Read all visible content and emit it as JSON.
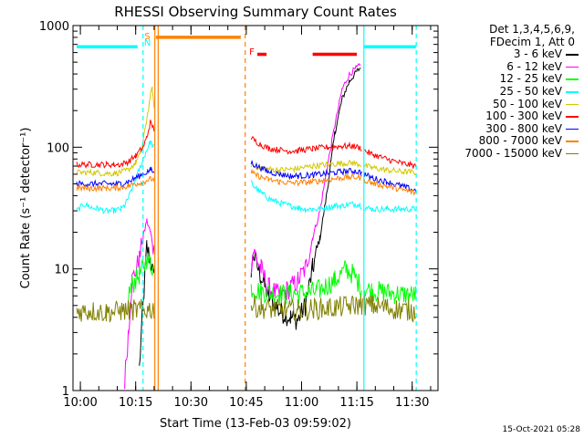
{
  "chart_data": {
    "type": "line",
    "title": "RHESSI Observing Summary Count Rates",
    "xlabel": "Start Time (13-Feb-03 09:59:02)",
    "ylabel": "Count Rate (s⁻¹ detector⁻¹)",
    "yscale": "log",
    "ylim": [
      1,
      1000
    ],
    "xlim_minutes": [
      -1,
      98
    ],
    "x_units": "minutes after 09:59:02",
    "x_ticks": [
      {
        "minute": 1,
        "label": "10:00"
      },
      {
        "minute": 16,
        "label": "10:15"
      },
      {
        "minute": 31,
        "label": "10:30"
      },
      {
        "minute": 46,
        "label": "10:45"
      },
      {
        "minute": 61,
        "label": "11:00"
      },
      {
        "minute": 76,
        "label": "11:15"
      },
      {
        "minute": 91,
        "label": "11:30"
      }
    ],
    "y_ticks": [
      {
        "value": 1,
        "label": "1"
      },
      {
        "value": 10,
        "label": "10"
      },
      {
        "value": 100,
        "label": "100"
      },
      {
        "value": 1000,
        "label": "1000"
      }
    ],
    "gaps": [
      [
        21,
        47
      ],
      [
        77.5,
        77.8
      ]
    ],
    "series": [
      {
        "name": "3 - 6 keV",
        "color": "#000000",
        "points": [
          [
            17,
            1.5
          ],
          [
            18,
            5
          ],
          [
            19,
            15
          ],
          [
            20,
            12
          ],
          [
            21,
            8
          ],
          [
            47.3,
            10
          ],
          [
            48,
            13
          ],
          [
            50,
            8.5
          ],
          [
            52,
            6
          ],
          [
            55,
            4.5
          ],
          [
            58,
            4
          ],
          [
            60,
            3.8
          ],
          [
            62,
            5
          ],
          [
            64,
            10
          ],
          [
            66,
            18
          ],
          [
            68,
            45
          ],
          [
            70,
            130
          ],
          [
            72,
            250
          ],
          [
            74,
            350
          ],
          [
            76,
            420
          ],
          [
            77,
            450
          ]
        ]
      },
      {
        "name": "6 - 12 keV",
        "color": "#ff00ff",
        "points": [
          [
            13,
            1.2
          ],
          [
            14,
            3
          ],
          [
            15,
            8
          ],
          [
            17,
            12
          ],
          [
            18,
            18
          ],
          [
            19,
            25
          ],
          [
            20,
            20
          ],
          [
            21,
            14
          ],
          [
            47.3,
            11
          ],
          [
            48,
            14
          ],
          [
            50,
            10
          ],
          [
            52,
            7
          ],
          [
            55,
            6
          ],
          [
            58,
            7
          ],
          [
            60,
            8
          ],
          [
            62,
            10
          ],
          [
            64,
            18
          ],
          [
            66,
            30
          ],
          [
            68,
            70
          ],
          [
            70,
            150
          ],
          [
            72,
            300
          ],
          [
            74,
            400
          ],
          [
            76,
            450
          ],
          [
            77,
            470
          ]
        ]
      },
      {
        "name": "12 - 25 keV",
        "color": "#00ff00",
        "points": [
          [
            14,
            6
          ],
          [
            15,
            7.5
          ],
          [
            16,
            8
          ],
          [
            17,
            9
          ],
          [
            18,
            10
          ],
          [
            19,
            12
          ],
          [
            20,
            11
          ],
          [
            21,
            10
          ],
          [
            47.3,
            7
          ],
          [
            50,
            6.5
          ],
          [
            55,
            6.2
          ],
          [
            60,
            6.3
          ],
          [
            65,
            6.5
          ],
          [
            70,
            8
          ],
          [
            73,
            10
          ],
          [
            75,
            9
          ],
          [
            77.3,
            7
          ],
          [
            78,
            7
          ],
          [
            80,
            6.6
          ],
          [
            84,
            6.4
          ],
          [
            88,
            6.2
          ],
          [
            92,
            6.1
          ]
        ]
      },
      {
        "name": "25 - 50 keV",
        "color": "#00ffff",
        "points": [
          [
            0,
            30
          ],
          [
            2,
            34
          ],
          [
            4,
            32
          ],
          [
            6,
            31
          ],
          [
            8,
            30
          ],
          [
            10,
            30
          ],
          [
            12,
            31
          ],
          [
            13,
            33
          ],
          [
            14,
            38
          ],
          [
            15,
            45
          ],
          [
            16,
            55
          ],
          [
            17,
            65
          ],
          [
            18,
            80
          ],
          [
            19,
            95
          ],
          [
            20,
            110
          ],
          [
            21,
            100
          ],
          [
            47.3,
            52
          ],
          [
            48,
            48
          ],
          [
            50,
            42
          ],
          [
            52,
            38
          ],
          [
            54,
            36
          ],
          [
            56,
            34
          ],
          [
            58,
            33
          ],
          [
            60,
            32
          ],
          [
            62,
            31
          ],
          [
            64,
            31
          ],
          [
            66,
            31
          ],
          [
            68,
            32
          ],
          [
            70,
            33
          ],
          [
            72,
            33
          ],
          [
            74,
            34
          ],
          [
            76,
            34
          ],
          [
            77.3,
            33
          ],
          [
            78,
            32
          ],
          [
            80,
            31
          ],
          [
            84,
            31
          ],
          [
            88,
            31
          ],
          [
            92,
            31
          ]
        ]
      },
      {
        "name": "50 - 100 keV",
        "color": "#d4c800",
        "points": [
          [
            0,
            62
          ],
          [
            4,
            62
          ],
          [
            8,
            61
          ],
          [
            10,
            61
          ],
          [
            12,
            62
          ],
          [
            14,
            65
          ],
          [
            16,
            75
          ],
          [
            17,
            85
          ],
          [
            18,
            110
          ],
          [
            19,
            170
          ],
          [
            20,
            260
          ],
          [
            20.5,
            310
          ],
          [
            21,
            200
          ],
          [
            47.3,
            72
          ],
          [
            48,
            70
          ],
          [
            50,
            68
          ],
          [
            52,
            66
          ],
          [
            55,
            65
          ],
          [
            58,
            66
          ],
          [
            60,
            67
          ],
          [
            64,
            70
          ],
          [
            68,
            72
          ],
          [
            72,
            74
          ],
          [
            75,
            74
          ],
          [
            77.3,
            72
          ],
          [
            78,
            70
          ],
          [
            80,
            68
          ],
          [
            84,
            65
          ],
          [
            88,
            63
          ],
          [
            92,
            62
          ]
        ]
      },
      {
        "name": "100 - 300 keV",
        "color": "#ff0000",
        "points": [
          [
            0,
            72
          ],
          [
            4,
            72
          ],
          [
            8,
            72
          ],
          [
            10,
            72
          ],
          [
            12,
            72
          ],
          [
            14,
            76
          ],
          [
            16,
            85
          ],
          [
            18,
            100
          ],
          [
            19,
            120
          ],
          [
            20,
            160
          ],
          [
            21,
            140
          ],
          [
            47.3,
            120
          ],
          [
            48,
            115
          ],
          [
            50,
            105
          ],
          [
            52,
            98
          ],
          [
            55,
            95
          ],
          [
            58,
            93
          ],
          [
            60,
            94
          ],
          [
            64,
            97
          ],
          [
            68,
            100
          ],
          [
            72,
            102
          ],
          [
            75,
            102
          ],
          [
            77.3,
            98
          ],
          [
            78,
            94
          ],
          [
            80,
            88
          ],
          [
            84,
            80
          ],
          [
            88,
            74
          ],
          [
            92,
            70
          ]
        ]
      },
      {
        "name": "300 - 800 keV",
        "color": "#0000ff",
        "points": [
          [
            0,
            50
          ],
          [
            4,
            50
          ],
          [
            8,
            50
          ],
          [
            10,
            50
          ],
          [
            12,
            50
          ],
          [
            14,
            52
          ],
          [
            16,
            56
          ],
          [
            18,
            60
          ],
          [
            20,
            65
          ],
          [
            21,
            62
          ],
          [
            47.3,
            75
          ],
          [
            48,
            72
          ],
          [
            50,
            67
          ],
          [
            52,
            63
          ],
          [
            55,
            60
          ],
          [
            58,
            58
          ],
          [
            60,
            58
          ],
          [
            64,
            59
          ],
          [
            68,
            61
          ],
          [
            72,
            63
          ],
          [
            75,
            64
          ],
          [
            77.3,
            62
          ],
          [
            78,
            60
          ],
          [
            80,
            56
          ],
          [
            84,
            52
          ],
          [
            88,
            48
          ],
          [
            92,
            44
          ]
        ]
      },
      {
        "name": "800 - 7000 keV",
        "color": "#ff8000",
        "points": [
          [
            0,
            46
          ],
          [
            4,
            46
          ],
          [
            8,
            46
          ],
          [
            10,
            46
          ],
          [
            12,
            47
          ],
          [
            14,
            48
          ],
          [
            16,
            50
          ],
          [
            18,
            52
          ],
          [
            20,
            55
          ],
          [
            21,
            54
          ],
          [
            47.3,
            62
          ],
          [
            48,
            60
          ],
          [
            50,
            57
          ],
          [
            52,
            54
          ],
          [
            55,
            52
          ],
          [
            58,
            51
          ],
          [
            60,
            51
          ],
          [
            64,
            52
          ],
          [
            68,
            54
          ],
          [
            72,
            56
          ],
          [
            75,
            57
          ],
          [
            77.3,
            56
          ],
          [
            78,
            54
          ],
          [
            80,
            51
          ],
          [
            84,
            48
          ],
          [
            88,
            45
          ],
          [
            92,
            42
          ]
        ]
      },
      {
        "name": "7000 - 15000 keV",
        "color": "#808000",
        "points": [
          [
            0,
            4.5
          ],
          [
            4,
            4.5
          ],
          [
            8,
            4.4
          ],
          [
            12,
            4.5
          ],
          [
            16,
            4.6
          ],
          [
            18,
            4.6
          ],
          [
            21,
            4.7
          ],
          [
            47.3,
            5
          ],
          [
            50,
            4.8
          ],
          [
            55,
            4.6
          ],
          [
            60,
            4.6
          ],
          [
            65,
            4.7
          ],
          [
            70,
            4.8
          ],
          [
            75,
            5
          ],
          [
            77.3,
            5.1
          ],
          [
            80,
            5
          ],
          [
            84,
            4.8
          ],
          [
            88,
            4.6
          ],
          [
            92,
            4.5
          ]
        ]
      }
    ],
    "legend_header": [
      "Det 1,3,4,5,6,9,",
      "FDecim 1, Att 0"
    ],
    "legend_position": "right",
    "bars": [
      {
        "color": "#00ffff",
        "from": 0,
        "to": 16.5,
        "value": 670
      },
      {
        "color": "#00ffff",
        "from": 78,
        "to": 92,
        "value": 670
      },
      {
        "color": "#ff8000",
        "from": 21.5,
        "to": 44.5,
        "value": 800
      },
      {
        "color": "#ff0000",
        "from": 49,
        "to": 51.5,
        "value": 580
      },
      {
        "color": "#ff0000",
        "from": 64,
        "to": 76,
        "value": 580
      }
    ],
    "markers": [
      {
        "text": "S",
        "color": "#ff8000",
        "minute": 19.2
      },
      {
        "text": "N",
        "color": "#00ffff",
        "minute": 19.2
      },
      {
        "text": "F",
        "color": "#ff0000",
        "minute": 47.5
      }
    ],
    "vlines": [
      {
        "minute": 18,
        "color": "#00ffff",
        "style": "dashed"
      },
      {
        "minute": 21.2,
        "color": "#ff8000",
        "style": "solid"
      },
      {
        "minute": 22.1,
        "color": "#ff8000",
        "style": "solid"
      },
      {
        "minute": 45.7,
        "color": "#ff8000",
        "style": "dashed"
      },
      {
        "minute": 77.9,
        "color": "#00ffff",
        "style": "solid"
      },
      {
        "minute": 92.1,
        "color": "#00ffff",
        "style": "dashed"
      }
    ]
  },
  "timestamp": "15-Oct-2021 05:28"
}
